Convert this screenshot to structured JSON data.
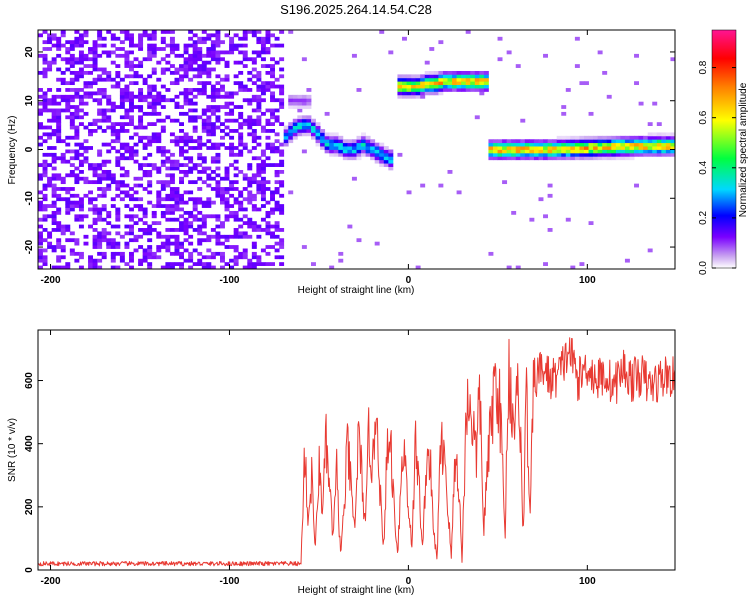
{
  "title": "S196.2025.264.14.54.C28",
  "colors": {
    "snr_line": "#e83a32",
    "axis": "#000000",
    "colormap": [
      "#ffffff",
      "#c8a2f0",
      "#7a00ff",
      "#0000ff",
      "#00d8ff",
      "#00ff40",
      "#ffff00",
      "#ff8000",
      "#ff0000",
      "#ff1493"
    ]
  },
  "chart_data": [
    {
      "type": "heatmap",
      "name": "spectrogram",
      "xlabel": "Height of straight line (km)",
      "ylabel": "Frequency (Hz)",
      "xlim": [
        -207,
        149
      ],
      "ylim": [
        -24.5,
        24.5
      ],
      "xticks": [
        -200,
        -100,
        0,
        100
      ],
      "yticks": [
        -20,
        -10,
        0,
        10,
        20
      ],
      "colorbar": {
        "label": "Normalized spectral amplitude",
        "range": [
          0.0,
          0.95
        ],
        "ticks": [
          0.0,
          0.2,
          0.4,
          0.6,
          0.8
        ]
      },
      "regions": [
        {
          "x": [
            -207,
            -70
          ],
          "kind": "noise",
          "amplitude": 0.15
        },
        {
          "x": [
            -70,
            45
          ],
          "kind": "gap",
          "amplitude": 0.02
        },
        {
          "x": [
            45,
            149
          ],
          "kind": "gap",
          "amplitude": 0.02
        }
      ],
      "ridges": [
        {
          "points": [
            [
              -70,
              2
            ],
            [
              -65,
              4
            ],
            [
              -60,
              5
            ],
            [
              -55,
              5
            ],
            [
              -50,
              3
            ],
            [
              -45,
              1
            ],
            [
              -40,
              1
            ],
            [
              -35,
              0
            ],
            [
              -30,
              0
            ],
            [
              -25,
              1
            ],
            [
              -20,
              0
            ],
            [
              -15,
              -1
            ],
            [
              -10,
              -2
            ],
            [
              -8,
              -2
            ]
          ],
          "width": 1.5,
          "amplitude": 0.35
        },
        {
          "points": [
            [
              -68,
              10
            ],
            [
              -60,
              10
            ],
            [
              -55,
              10
            ]
          ],
          "width": 1.2,
          "amplitude": 0.1
        },
        {
          "points": [
            [
              -7,
              -11.5
            ],
            [
              -5,
              -11.5
            ]
          ],
          "width": 1.2,
          "amplitude": 0.15
        },
        {
          "points": [
            [
              -5,
              13
            ],
            [
              5,
              13
            ],
            [
              10,
              13.5
            ],
            [
              15,
              13.5
            ],
            [
              20,
              14
            ],
            [
              30,
              14
            ],
            [
              40,
              14
            ],
            [
              44,
              14
            ]
          ],
          "width": 1.5,
          "amplitude": 0.7
        },
        {
          "points": [
            [
              46,
              0
            ],
            [
              60,
              0
            ],
            [
              80,
              0
            ],
            [
              100,
              0.3
            ],
            [
              120,
              0.6
            ],
            [
              140,
              0.8
            ],
            [
              149,
              0.8
            ]
          ],
          "width": 1.5,
          "amplitude": 0.7
        }
      ]
    },
    {
      "type": "line",
      "name": "snr",
      "xlabel": "Height of straight line (km)",
      "ylabel": "SNR (10 * v/v)",
      "xlim": [
        -207,
        149
      ],
      "ylim": [
        0,
        760
      ],
      "xticks": [
        -200,
        -100,
        0,
        100
      ],
      "yticks": [
        0,
        200,
        400,
        600
      ],
      "keypoints": [
        [
          -207,
          20
        ],
        [
          -60,
          20
        ],
        [
          -58,
          380
        ],
        [
          -56,
          150
        ],
        [
          -54,
          300
        ],
        [
          -52,
          60
        ],
        [
          -50,
          330
        ],
        [
          -48,
          200
        ],
        [
          -46,
          400
        ],
        [
          -44,
          250
        ],
        [
          -42,
          100
        ],
        [
          -40,
          320
        ],
        [
          -38,
          50
        ],
        [
          -36,
          180
        ],
        [
          -34,
          400
        ],
        [
          -32,
          250
        ],
        [
          -30,
          120
        ],
        [
          -28,
          420
        ],
        [
          -26,
          300
        ],
        [
          -24,
          120
        ],
        [
          -22,
          460
        ],
        [
          -20,
          300
        ],
        [
          -18,
          560
        ],
        [
          -16,
          280
        ],
        [
          -14,
          50
        ],
        [
          -12,
          350
        ],
        [
          -10,
          420
        ],
        [
          -8,
          200
        ],
        [
          -6,
          50
        ],
        [
          -4,
          300
        ],
        [
          -2,
          380
        ],
        [
          0,
          200
        ],
        [
          2,
          80
        ],
        [
          4,
          400
        ],
        [
          6,
          260
        ],
        [
          8,
          60
        ],
        [
          10,
          350
        ],
        [
          12,
          360
        ],
        [
          14,
          120
        ],
        [
          16,
          40
        ],
        [
          18,
          380
        ],
        [
          20,
          400
        ],
        [
          22,
          200
        ],
        [
          24,
          40
        ],
        [
          26,
          350
        ],
        [
          28,
          300
        ],
        [
          30,
          20
        ],
        [
          32,
          450
        ],
        [
          34,
          560
        ],
        [
          36,
          460
        ],
        [
          38,
          360
        ],
        [
          40,
          560
        ],
        [
          42,
          120
        ],
        [
          44,
          300
        ],
        [
          46,
          450
        ],
        [
          48,
          580
        ],
        [
          50,
          600
        ],
        [
          52,
          420
        ],
        [
          54,
          100
        ],
        [
          56,
          640
        ],
        [
          58,
          520
        ],
        [
          60,
          480
        ],
        [
          62,
          600
        ],
        [
          64,
          100
        ],
        [
          66,
          560
        ],
        [
          68,
          140
        ],
        [
          70,
          600
        ],
        [
          75,
          640
        ],
        [
          80,
          600
        ],
        [
          85,
          630
        ],
        [
          90,
          700
        ],
        [
          95,
          600
        ],
        [
          100,
          650
        ],
        [
          105,
          600
        ],
        [
          110,
          620
        ],
        [
          115,
          580
        ],
        [
          120,
          640
        ],
        [
          125,
          600
        ],
        [
          130,
          620
        ],
        [
          135,
          580
        ],
        [
          140,
          600
        ],
        [
          145,
          620
        ],
        [
          149,
          600
        ]
      ]
    }
  ]
}
